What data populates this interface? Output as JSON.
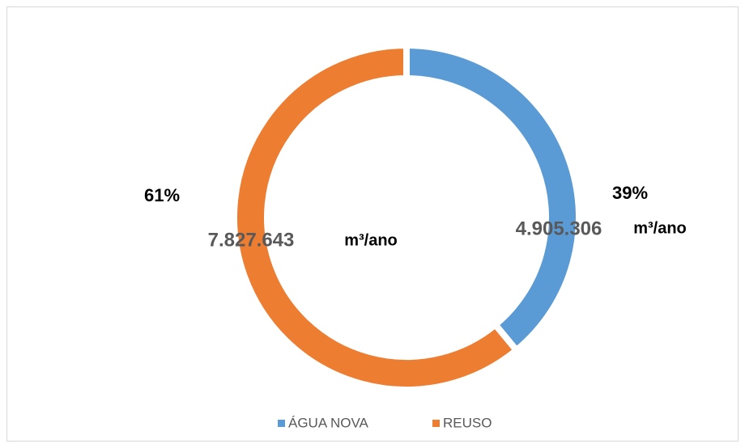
{
  "chart_data": {
    "type": "donut",
    "categories": [
      "ÁGUA NOVA",
      "REUSO"
    ],
    "values": [
      39,
      61
    ],
    "value_labels": [
      "39%",
      "61%"
    ],
    "amounts": [
      4905306,
      7827643
    ],
    "amount_labels": [
      "4.905.306",
      "7.827.643"
    ],
    "unit": "m³/ano",
    "colors": [
      "#5b9bd5",
      "#ed7d31"
    ],
    "legend": "bottom"
  }
}
